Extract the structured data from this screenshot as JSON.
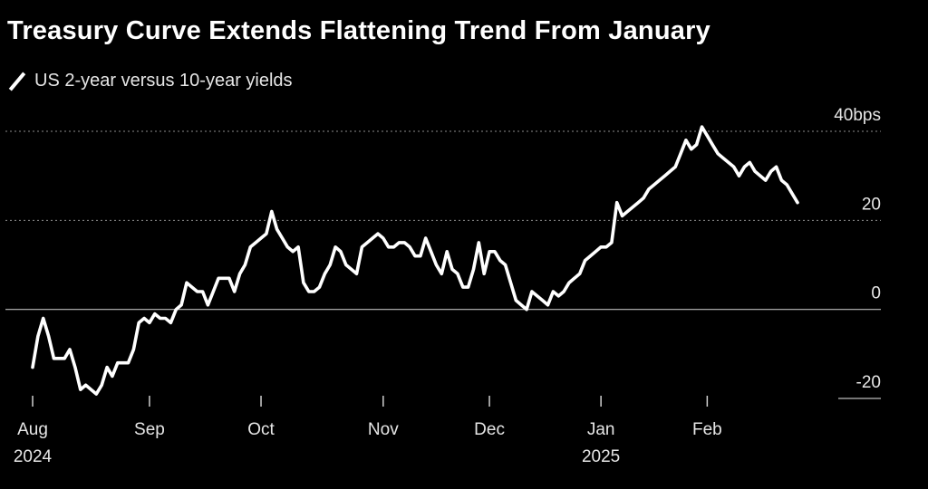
{
  "header": {
    "title": "Treasury Curve Extends Flattening Trend From January",
    "legend_label": "US 2-year versus 10-year yields"
  },
  "colors": {
    "background": "#000000",
    "line": "#ffffff",
    "grid": "#8c8c8c",
    "text": "#e6e6e6"
  },
  "chart_data": {
    "type": "line",
    "title": "Treasury Curve Extends Flattening Trend From January",
    "xlabel": "",
    "ylabel": "bps",
    "ylim": [
      -20,
      40
    ],
    "y_ticks": [
      {
        "value": 40,
        "label": "40bps",
        "style": "dotted"
      },
      {
        "value": 20,
        "label": "20",
        "style": "dotted"
      },
      {
        "value": 0,
        "label": "0",
        "style": "solid"
      },
      {
        "value": -20,
        "label": "-20",
        "style": "none"
      }
    ],
    "x_ticks": [
      {
        "label": "Aug",
        "year": "2024",
        "index": 0
      },
      {
        "label": "Sep",
        "year": "",
        "index": 22
      },
      {
        "label": "Oct",
        "year": "",
        "index": 43
      },
      {
        "label": "Nov",
        "year": "",
        "index": 66
      },
      {
        "label": "Dec",
        "year": "",
        "index": 86
      },
      {
        "label": "Jan",
        "year": "2025",
        "index": 107
      },
      {
        "label": "Feb",
        "year": "",
        "index": 127
      }
    ],
    "series": [
      {
        "name": "US 2-year versus 10-year yields",
        "values": [
          -13,
          -6,
          -2,
          -6,
          -11,
          -11,
          -11,
          -9,
          -13,
          -18,
          -17,
          -18,
          -19,
          -17,
          -13,
          -15,
          -12,
          -12,
          -12,
          -9,
          -3,
          -2,
          -3,
          -1,
          -2,
          -2,
          -3,
          0,
          1,
          6,
          5,
          4,
          4,
          1,
          4,
          7,
          7,
          7,
          4,
          8,
          10,
          14,
          15,
          16,
          17,
          22,
          18,
          16,
          14,
          13,
          14,
          6,
          4,
          4,
          5,
          8,
          10,
          14,
          13,
          10,
          9,
          8,
          14,
          15,
          16,
          17,
          16,
          14,
          14,
          15,
          15,
          14,
          12,
          12,
          16,
          13,
          10,
          8,
          13,
          9,
          8,
          5,
          5,
          9,
          15,
          8,
          13,
          13,
          11,
          10,
          6,
          2,
          1,
          0,
          4,
          3,
          2,
          1,
          4,
          3,
          4,
          6,
          7,
          8,
          11,
          12,
          13,
          14,
          14,
          15,
          24,
          21,
          22,
          23,
          24,
          25,
          27,
          28,
          29,
          30,
          31,
          32,
          35,
          38,
          36,
          37,
          41,
          39,
          37,
          35,
          34,
          33,
          32,
          30,
          32,
          33,
          31,
          30,
          29,
          31,
          32,
          29,
          28,
          26,
          24
        ]
      }
    ]
  }
}
